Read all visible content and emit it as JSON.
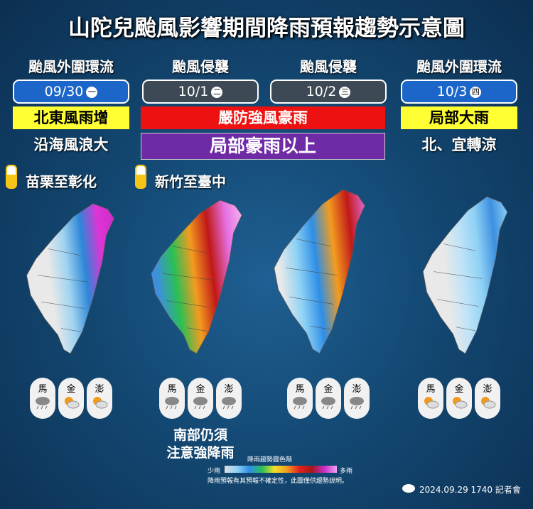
{
  "header": {
    "title": "山陀兒颱風影響期間降雨預報趨勢示意圖"
  },
  "columns": [
    {
      "phase": "颱風外圍環流",
      "date": "09/30",
      "weekday": "一",
      "notice": "北東風雨增",
      "note": "沿海風浪大",
      "temperature": "苗栗至彰化",
      "islands": [
        "馬",
        "金",
        "澎"
      ]
    },
    {
      "phase": "颱風侵襲",
      "date": "10/1",
      "weekday": "二",
      "temperature": "新竹至臺中",
      "islands": [
        "馬",
        "金",
        "澎"
      ],
      "remark": [
        "南部仍須",
        "注意強降雨"
      ]
    },
    {
      "phase": "颱風侵襲",
      "date": "10/2",
      "weekday": "三",
      "islands": [
        "馬",
        "金",
        "澎"
      ]
    },
    {
      "phase": "颱風外圍環流",
      "date": "10/3",
      "weekday": "四",
      "notice": "局部大雨",
      "note": "北、宜轉涼",
      "islands": [
        "馬",
        "金",
        "澎"
      ]
    }
  ],
  "banners": [
    "嚴防強風豪雨",
    "局部豪雨以上"
  ],
  "legend": {
    "title": "降雨趨勢圖色階",
    "low": "少雨",
    "high": "多雨",
    "disclaimer": "降雨預報有其預報不確定性，此圖僅供趨勢說明。"
  },
  "footer": {
    "source": "2024.09.29 1740 記者會"
  }
}
